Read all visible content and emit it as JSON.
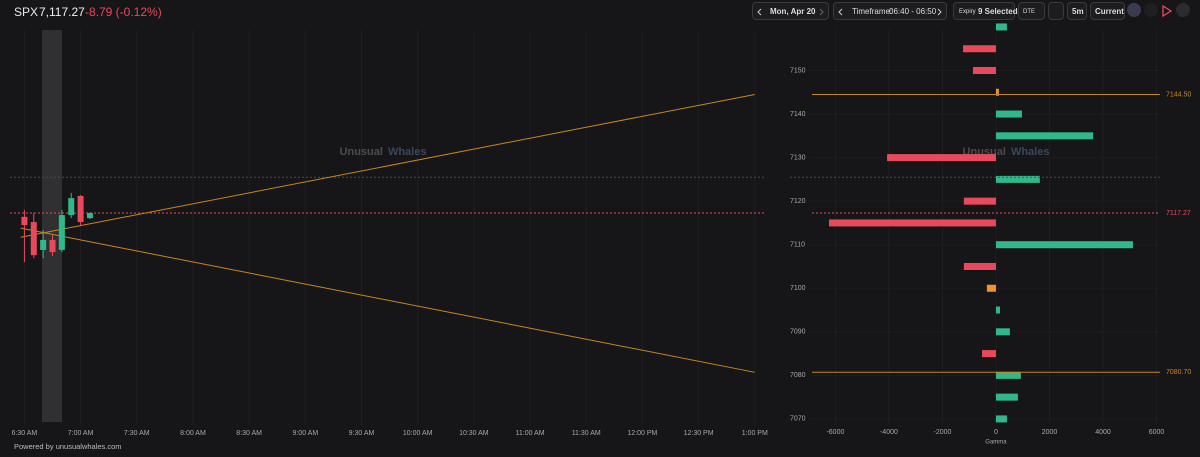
{
  "header": {
    "symbol": "SPX",
    "price": "7,117.27",
    "change": "-8.79 (-0.12%)",
    "date": "Mon, Apr 20",
    "timeframe_label": "Timeframe:",
    "timeframe": "06:40 - 06:50",
    "expiry_label": "Expiry",
    "expiry": "9 Selected",
    "dte": "DTE",
    "interval": "5m",
    "current": "Current"
  },
  "footer": "Powered by unusualwhales.com",
  "chart_data": [
    {
      "type": "candlestick",
      "watermark": [
        "Unusual",
        "Whales"
      ],
      "x": [
        390,
        395,
        400,
        405,
        410,
        415,
        420,
        425
      ],
      "open": [
        7116.4,
        7115.2,
        7108.8,
        7111.1,
        7108.8,
        7116.8,
        7121.2,
        7116.1
      ],
      "high": [
        7118.0,
        7117.3,
        7113.4,
        7112.2,
        7118.0,
        7121.9,
        7121.4,
        7117.4
      ],
      "low": [
        7106.0,
        7106.9,
        7106.9,
        7107.4,
        7108.3,
        7116.1,
        7114.5,
        7115.9
      ],
      "close": [
        7114.5,
        7107.6,
        7111.1,
        7108.3,
        7116.8,
        7120.7,
        7115.2,
        7117.27
      ],
      "up_color": "#2fb98a",
      "down_color": "#e8495b",
      "cone": [
        {
          "color": "#c8861e",
          "x": [
            388,
            780
          ],
          "values": [
            7111.7,
            7144.5
          ]
        },
        {
          "color": "#c8861e",
          "x": [
            388,
            780
          ],
          "values": [
            7113.8,
            7080.7
          ]
        }
      ],
      "hlines": [
        {
          "value": 7125.5,
          "color": "#4a4a4e"
        },
        {
          "value": 7117.27,
          "color": "#e8495b"
        }
      ],
      "xlim": [
        382.3,
        786
      ],
      "xticks": [
        {
          "value": 390,
          "label": "6:30 AM"
        },
        {
          "value": 420,
          "label": "7:00 AM"
        },
        {
          "value": 450,
          "label": "7:30 AM"
        },
        {
          "value": 480,
          "label": "8:00 AM"
        },
        {
          "value": 510,
          "label": "8:30 AM"
        },
        {
          "value": 540,
          "label": "9:00 AM"
        },
        {
          "value": 570,
          "label": "9:30 AM"
        },
        {
          "value": 600,
          "label": "10:00 AM"
        },
        {
          "value": 630,
          "label": "10:30 AM"
        },
        {
          "value": 660,
          "label": "11:00 AM"
        },
        {
          "value": 690,
          "label": "11:30 AM"
        },
        {
          "value": 720,
          "label": "12:00 PM"
        },
        {
          "value": 750,
          "label": "12:30 PM"
        },
        {
          "value": 780,
          "label": "1:00 PM"
        }
      ],
      "ylim": [
        7068.6,
        7159.3
      ],
      "grid": true
    },
    {
      "type": "hbar",
      "watermark": [
        "Unusual",
        "Whales"
      ],
      "x_label": "Gamma",
      "categories": [
        7160,
        7155,
        7150,
        7145,
        7140,
        7135,
        7130,
        7125,
        7120,
        7115,
        7110,
        7105,
        7100,
        7095,
        7090,
        7085,
        7080,
        7075,
        7070
      ],
      "values": [
        410,
        -1230,
        -860,
        110,
        970,
        3630,
        -4070,
        1640,
        -1200,
        -6240,
        5120,
        -1200,
        -340,
        150,
        520,
        -520,
        930,
        820,
        410
      ],
      "colors": [
        "#2fb98a",
        "#e8495b",
        "#e8495b",
        "#f0922e",
        "#2fb98a",
        "#2fb98a",
        "#e8495b",
        "#2fb98a",
        "#e8495b",
        "#e8495b",
        "#2fb98a",
        "#e8495b",
        "#f0922e",
        "#2fb98a",
        "#2fb98a",
        "#e8495b",
        "#2fb98a",
        "#2fb98a",
        "#2fb98a"
      ],
      "hlines": [
        {
          "value": 7144.5,
          "label": "7144.50",
          "color": "#c8861e"
        },
        {
          "value": 7125.5,
          "color": "#4a4a4e"
        },
        {
          "value": 7117.27,
          "label": "7117.27",
          "color": "#e8495b"
        },
        {
          "value": 7080.7,
          "label": "7080.70",
          "color": "#c8861e"
        }
      ],
      "xlim": [
        -6950,
        6130
      ],
      "xticks": [
        -6000,
        -4000,
        -2000,
        0,
        2000,
        4000,
        6000
      ],
      "ylim": [
        7068.6,
        7159.3
      ],
      "yticks": [
        7070,
        7080,
        7090,
        7100,
        7110,
        7120,
        7130,
        7140,
        7150
      ],
      "grid": true
    }
  ]
}
